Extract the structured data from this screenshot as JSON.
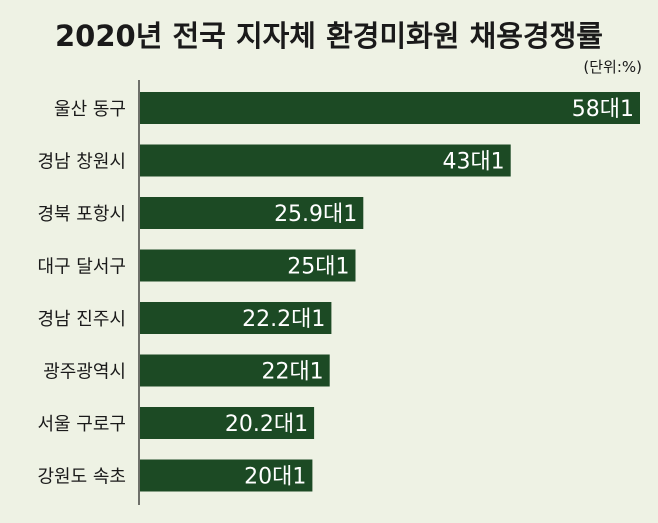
{
  "chart_data": {
    "type": "bar",
    "orientation": "horizontal",
    "title": "2020년 전국 지자체 환경미화원 채용경쟁률",
    "unit_note": "(단위:%)",
    "categories": [
      "울산 동구",
      "경남 창원시",
      "경북 포항시",
      "대구 달서구",
      "경남 진주시",
      "광주광역시",
      "서울 구로구",
      "강원도 속초"
    ],
    "values": [
      58,
      43,
      25.9,
      25,
      22.2,
      22,
      20.2,
      20
    ],
    "data_labels": [
      "58대1",
      "43대1",
      "25.9대1",
      "25대1",
      "22.2대1",
      "22대1",
      "20.2대1",
      "20대1"
    ],
    "xlim": [
      0,
      58
    ],
    "grid": false,
    "legend": "none"
  },
  "colors": {
    "background": "#eef2e4",
    "bar": "#1c4a24",
    "bar_label": "#ffffff",
    "axis": "#1a1a1a",
    "text": "#1a1a1a"
  }
}
